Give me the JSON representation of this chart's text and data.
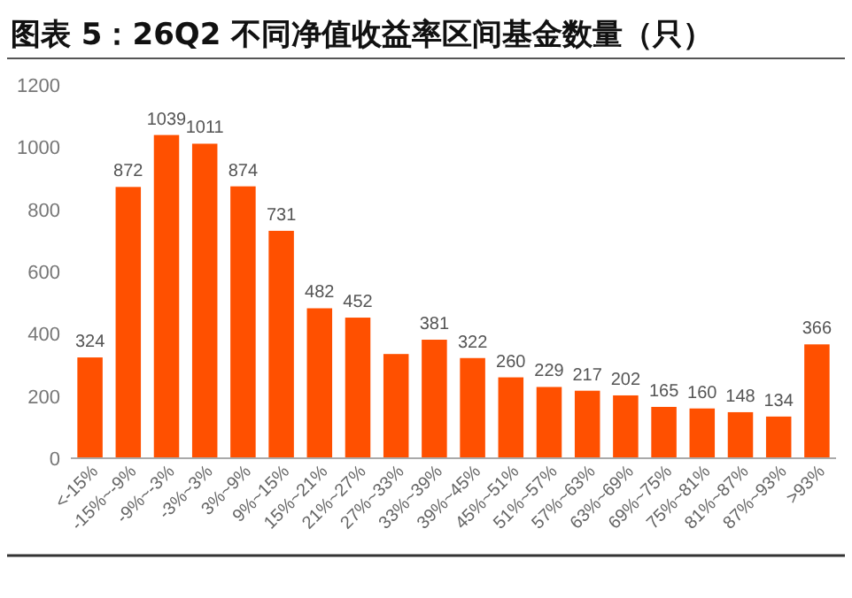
{
  "chart_data": {
    "type": "bar",
    "title": "图表 5：26Q2 不同净值收益率区间基金数量（只）",
    "categories": [
      "<-15%",
      "-15%~-9%",
      "-9%~-3%",
      "-3%~3%",
      "3%~9%",
      "9%~15%",
      "15%~21%",
      "21%~27%",
      "27%~33%",
      "33%~39%",
      "39%~45%",
      "45%~51%",
      "51%~57%",
      "57%~63%",
      "63%~69%",
      "69%~75%",
      "75%~81%",
      "81%~87%",
      "87%~93%",
      ">93%"
    ],
    "values": [
      324,
      872,
      1039,
      1011,
      874,
      731,
      482,
      452,
      335,
      381,
      322,
      260,
      229,
      217,
      202,
      165,
      160,
      148,
      134,
      366
    ],
    "value_labels": [
      "324",
      "872",
      "1039",
      "1011",
      "874",
      "731",
      "482",
      "452",
      null,
      "381",
      "322",
      "260",
      "229",
      "217",
      "202",
      "165",
      "160",
      "148",
      "134",
      "366"
    ],
    "color": "#ff5000",
    "ylim": [
      0,
      1200
    ],
    "yticks": [
      0,
      200,
      400,
      600,
      800,
      1000,
      1200
    ],
    "grid": false
  }
}
